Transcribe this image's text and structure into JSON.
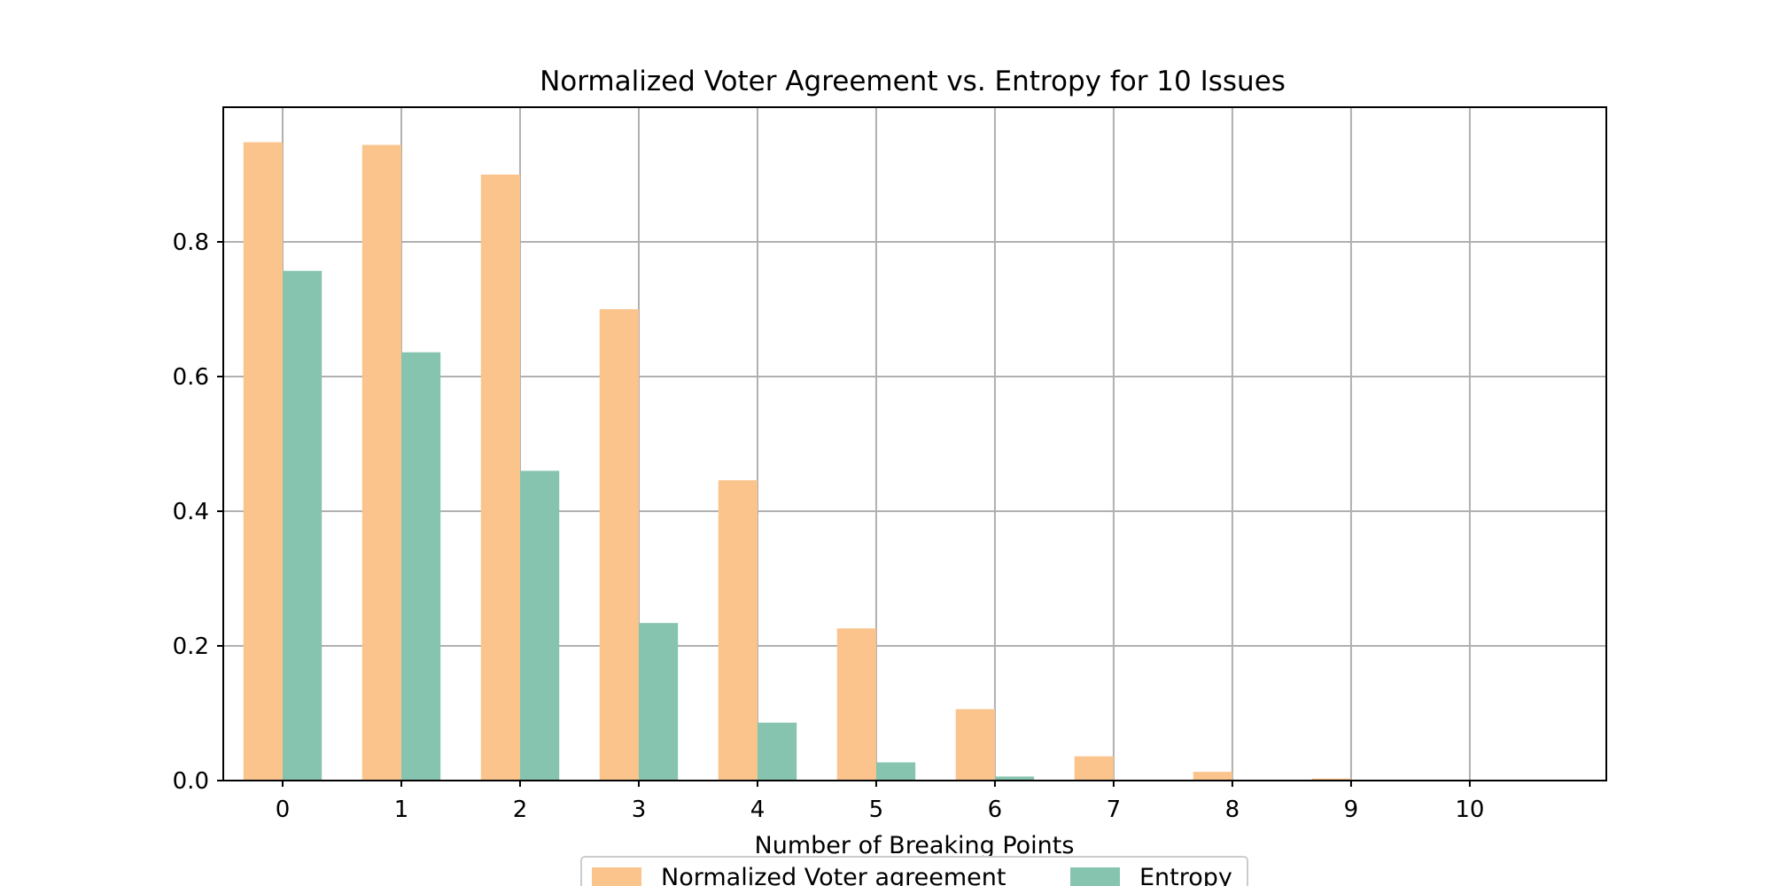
{
  "chart_data": {
    "type": "bar",
    "title": "Normalized Voter Agreement vs. Entropy for 10 Issues",
    "xlabel": "Number of Breaking Points",
    "ylabel": "",
    "categories": [
      "0",
      "1",
      "2",
      "3",
      "4",
      "5",
      "6",
      "7",
      "8",
      "9",
      "10"
    ],
    "x": [
      0,
      1,
      2,
      3,
      4,
      5,
      6,
      7,
      8,
      9,
      10
    ],
    "xlim": [
      -0.5,
      11.15
    ],
    "ylim": [
      0,
      1.0
    ],
    "yticks": [
      0.0,
      0.2,
      0.4,
      0.6,
      0.8
    ],
    "ytick_labels": [
      "0.0",
      "0.2",
      "0.4",
      "0.6",
      "0.8"
    ],
    "grid": true,
    "legend_position": "bottom-center",
    "series": [
      {
        "name": "Normalized Voter agreement",
        "color": "#fac48c",
        "values": [
          0.948,
          0.944,
          0.9,
          0.7,
          0.446,
          0.226,
          0.106,
          0.036,
          0.013,
          0.003,
          0.0
        ]
      },
      {
        "name": "Entropy",
        "color": "#86c4b0",
        "values": [
          0.757,
          0.636,
          0.46,
          0.234,
          0.086,
          0.027,
          0.006,
          0.001,
          0.0,
          0.0,
          0.0
        ]
      }
    ]
  }
}
